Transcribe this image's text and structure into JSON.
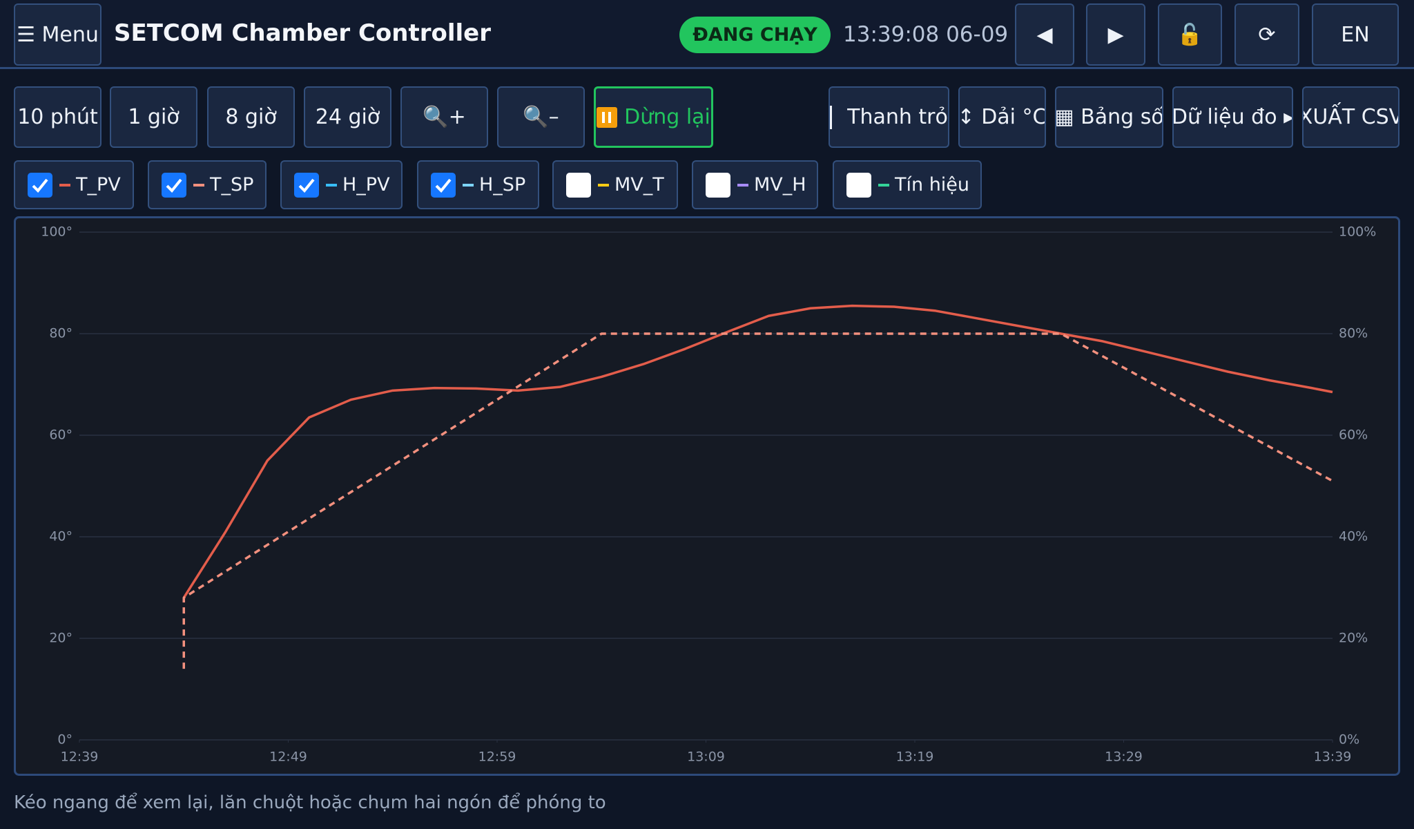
{
  "header": {
    "menu": "☰ Menu",
    "title": "SETCOM Chamber Controller",
    "status": "ĐANG CHẠY",
    "clock": "13:39:08 06-09",
    "buttons": [
      "◀",
      "▶",
      "🔓",
      "⟳",
      "EN"
    ]
  },
  "toolbar": {
    "ranges": [
      "10 phút",
      "1 giờ",
      "8 giờ",
      "24 giờ"
    ],
    "zoom": [
      "🔍+",
      "🔍–"
    ],
    "pause": "Dừng lại",
    "tools": [
      "Thanh trỏ",
      "↕ Dải °C",
      "▦ Bảng số",
      "Dữ liệu đo ▸",
      "XUẤT CSV"
    ]
  },
  "chart_data": {
    "type": "line",
    "grid": true,
    "xlim": [
      "12:39",
      "13:39"
    ],
    "xticks": [
      "12:39",
      "12:49",
      "12:59",
      "13:09",
      "13:19",
      "13:29",
      "13:39"
    ],
    "ylim": [
      0,
      100
    ],
    "yticks": [
      {
        "value": 0,
        "label": "0°"
      },
      {
        "value": 20,
        "label": "20°"
      },
      {
        "value": 40,
        "label": "40°"
      },
      {
        "value": 60,
        "label": "60°"
      },
      {
        "value": 80,
        "label": "80°"
      },
      {
        "value": 100,
        "label": "100°"
      }
    ],
    "y2lim": [
      0,
      100
    ],
    "y2ticks": [
      {
        "value": 0,
        "label": "0%"
      },
      {
        "value": 20,
        "label": "20%"
      },
      {
        "value": 40,
        "label": "40%"
      },
      {
        "value": 60,
        "label": "60%"
      },
      {
        "value": 80,
        "label": "80%"
      },
      {
        "value": 100,
        "label": "100%"
      }
    ],
    "series": [
      {
        "name": "T_PV",
        "color": "#e35d4b",
        "checked": true,
        "dashed": false,
        "x": [
          "12:44",
          "12:46",
          "12:48",
          "12:50",
          "12:52",
          "12:54",
          "12:56",
          "12:58",
          "13:00",
          "13:02",
          "13:04",
          "13:06",
          "13:08",
          "13:10",
          "13:12",
          "13:14",
          "13:16",
          "13:18",
          "13:20",
          "13:22",
          "13:24",
          "13:26",
          "13:28",
          "13:30",
          "13:32",
          "13:34",
          "13:36",
          "13:38",
          "13:39"
        ],
        "values": [
          28,
          41,
          55,
          63.5,
          67,
          68.8,
          69.3,
          69.2,
          68.8,
          69.5,
          71.5,
          74,
          77,
          80.3,
          83.5,
          85,
          85.5,
          85.3,
          84.5,
          83,
          81.5,
          80,
          78.5,
          76.5,
          74.5,
          72.5,
          70.8,
          69.3,
          68.5
        ]
      },
      {
        "name": "T_SP",
        "color": "#f2907e",
        "checked": true,
        "dashed": true,
        "x": [
          "12:44",
          "12:44",
          "13:04",
          "13:26",
          "13:39"
        ],
        "values": [
          14,
          28,
          80,
          80,
          51
        ]
      },
      {
        "name": "H_PV",
        "color": "#38bdf8",
        "checked": true,
        "axis": "y2"
      },
      {
        "name": "H_SP",
        "color": "#7dd3fc",
        "checked": true,
        "axis": "y2"
      },
      {
        "name": "MV_T",
        "color": "#facc15",
        "checked": false,
        "axis": "y2"
      },
      {
        "name": "MV_H",
        "color": "#a78bfa",
        "checked": false,
        "axis": "y2"
      },
      {
        "name": "Tín hiệu",
        "color": "#34d399",
        "checked": false,
        "axis": "y2"
      }
    ]
  },
  "hint": "Kéo ngang để xem lại, lăn chuột hoặc chụm hai ngón để phóng to"
}
